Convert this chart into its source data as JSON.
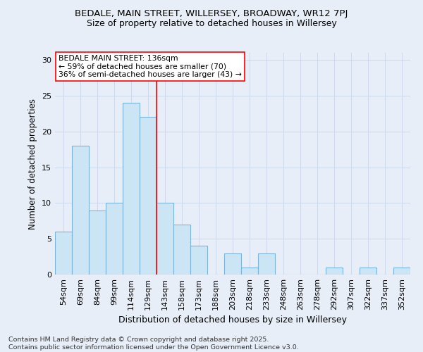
{
  "title1": "BEDALE, MAIN STREET, WILLERSEY, BROADWAY, WR12 7PJ",
  "title2": "Size of property relative to detached houses in Willersey",
  "xlabel": "Distribution of detached houses by size in Willersey",
  "ylabel": "Number of detached properties",
  "categories": [
    "54sqm",
    "69sqm",
    "84sqm",
    "99sqm",
    "114sqm",
    "129sqm",
    "143sqm",
    "158sqm",
    "173sqm",
    "188sqm",
    "203sqm",
    "218sqm",
    "233sqm",
    "248sqm",
    "263sqm",
    "278sqm",
    "292sqm",
    "307sqm",
    "322sqm",
    "337sqm",
    "352sqm"
  ],
  "values": [
    6,
    18,
    9,
    10,
    24,
    22,
    10,
    7,
    4,
    0,
    3,
    1,
    3,
    0,
    0,
    0,
    1,
    0,
    1,
    0,
    1
  ],
  "bar_color": "#cce5f5",
  "bar_edge_color": "#7ab4dc",
  "bar_linewidth": 0.8,
  "vline_x": 5.5,
  "vline_color": "red",
  "vline_linewidth": 1.2,
  "annotation_text": "BEDALE MAIN STREET: 136sqm\n← 59% of detached houses are smaller (70)\n36% of semi-detached houses are larger (43) →",
  "annotation_box_color": "white",
  "annotation_box_edge": "red",
  "ylim": [
    0,
    31
  ],
  "yticks": [
    0,
    5,
    10,
    15,
    20,
    25,
    30
  ],
  "grid_color": "#c8d4e8",
  "background_color": "#e8eef8",
  "footer_text": "Contains HM Land Registry data © Crown copyright and database right 2025.\nContains public sector information licensed under the Open Government Licence v3.0.",
  "title_fontsize": 9.5,
  "subtitle_fontsize": 9.0,
  "axis_label_fontsize": 9.0,
  "tick_fontsize": 8.0,
  "annotation_fontsize": 7.8,
  "footer_fontsize": 6.8,
  "ylabel_fontsize": 8.5
}
